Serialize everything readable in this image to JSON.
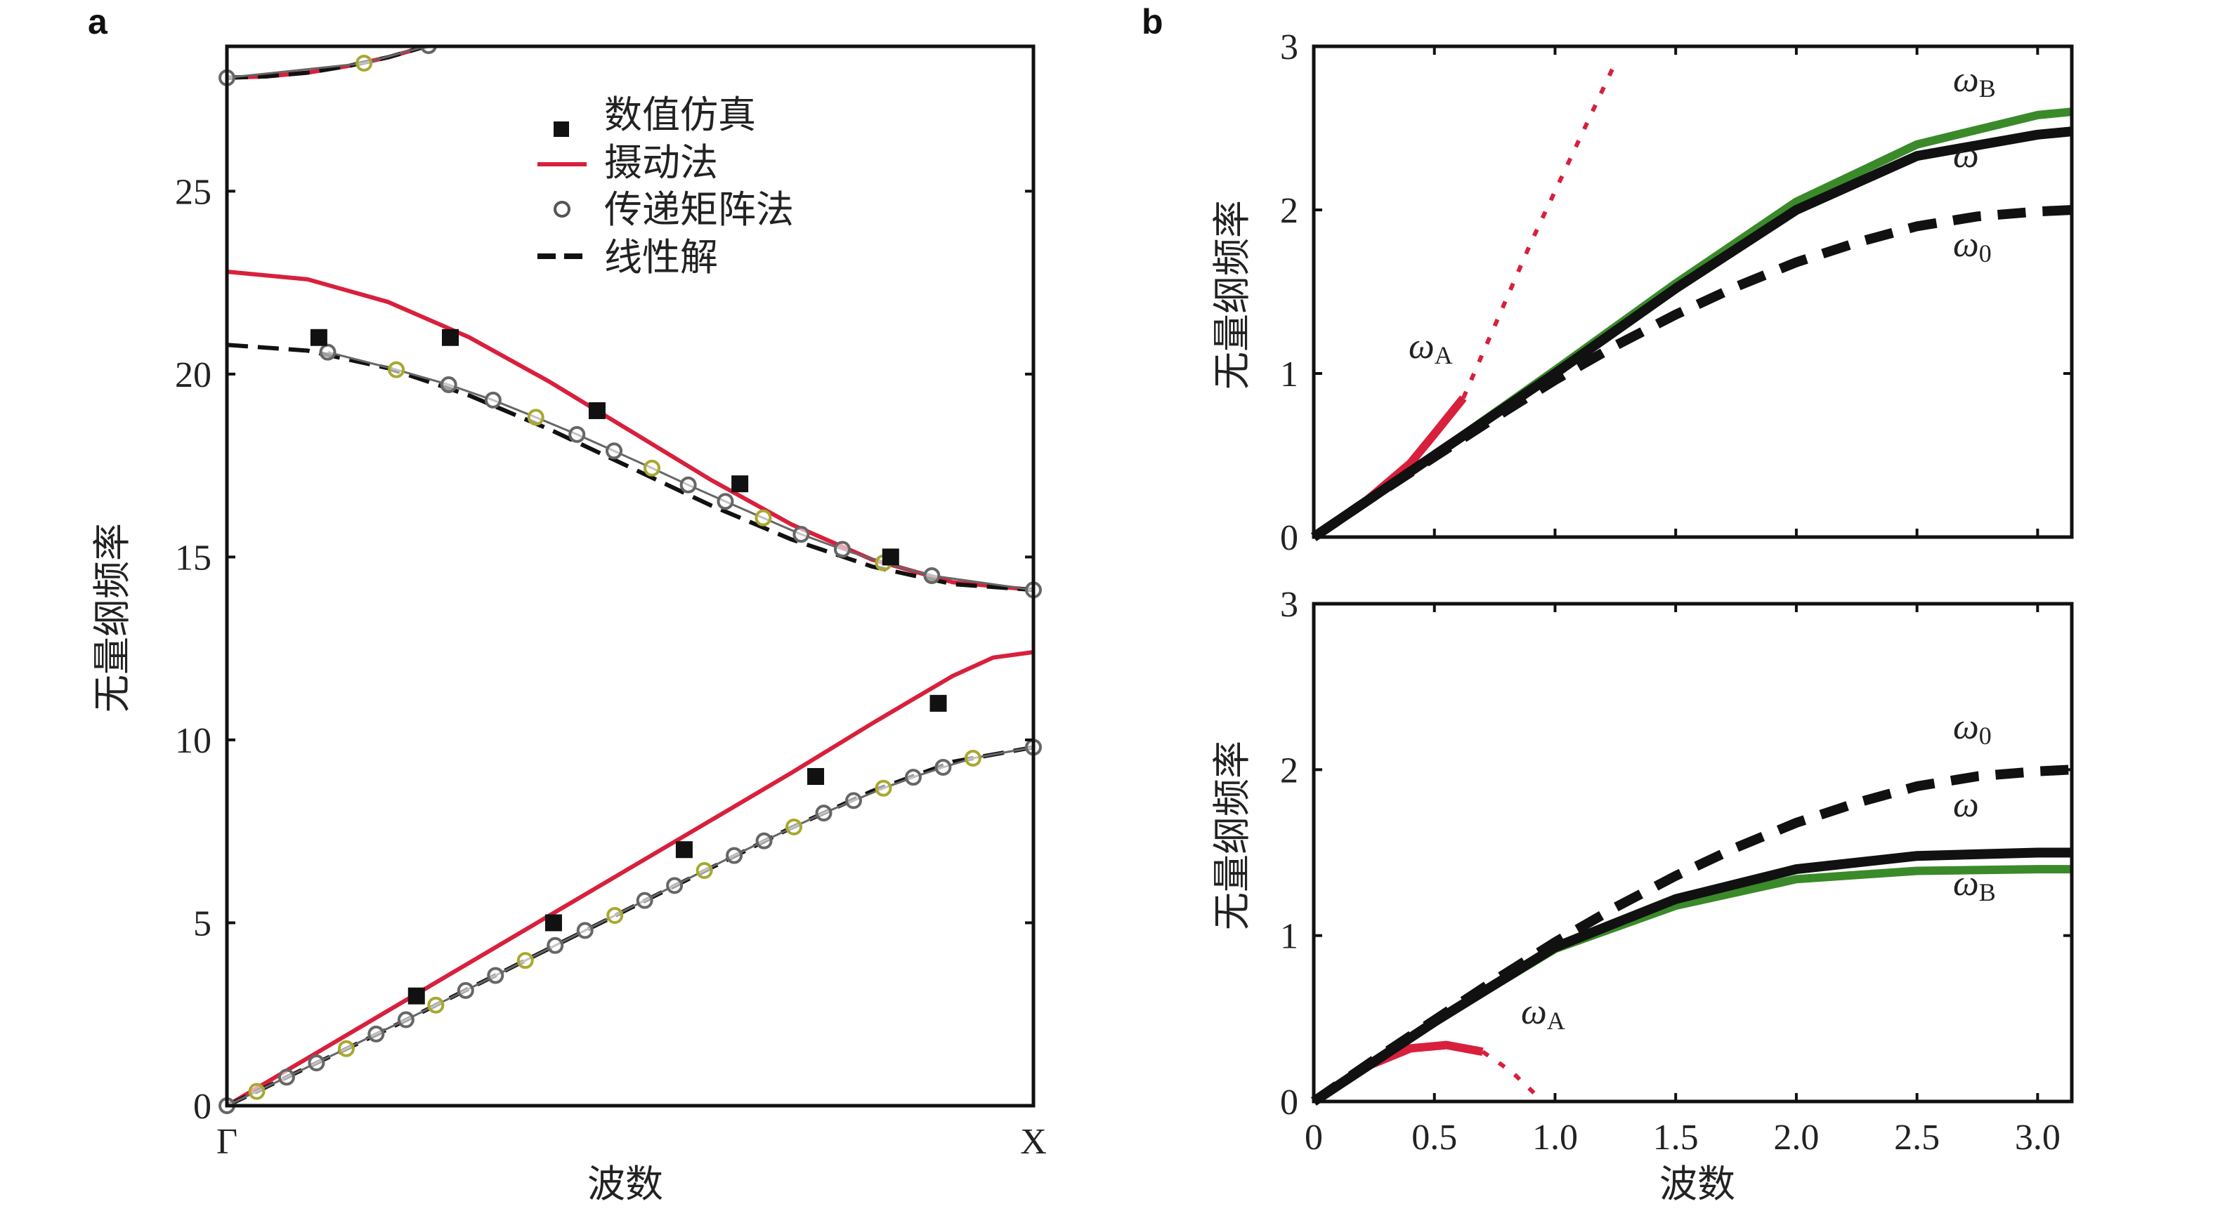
{
  "colors": {
    "perturb": "#d8203c",
    "linear": "#111111",
    "transfer": "#666666",
    "transfer_alt": "#a8a830",
    "green": "#3a8a2a",
    "black": "#111111",
    "frame": "#111111"
  },
  "chart_data": [
    {
      "id": "a",
      "panel_label": "a",
      "type": "line",
      "xlabel": "波数",
      "ylabel": "无量纲频率",
      "xticks": [
        {
          "v": 0,
          "label": "Γ"
        },
        {
          "v": 1,
          "label": "X"
        }
      ],
      "yticks": [
        0,
        5,
        10,
        15,
        20,
        25
      ],
      "xlim": [
        0,
        1
      ],
      "ylim": [
        0,
        28.96
      ],
      "legend": {
        "position": "top-center",
        "entries": [
          "数值仿真",
          "摄动法",
          "传递矩阵法",
          "线性解"
        ]
      },
      "series": [
        {
          "name": "摄动法",
          "style": "solid-red",
          "x": [
            0,
            0.1,
            0.2,
            0.3,
            0.4,
            0.5,
            0.6,
            0.7,
            0.8,
            0.85,
            0.9,
            0.95,
            1
          ],
          "y": [
            0,
            1.3,
            2.6,
            3.9,
            5.2,
            6.5,
            7.8,
            9.1,
            10.45,
            11.1,
            11.75,
            12.25,
            12.4
          ]
        },
        {
          "name": "摄动法",
          "style": "solid-red",
          "fn": "band2_perturb",
          "x": [
            0,
            0.1,
            0.2,
            0.3,
            0.4,
            0.5,
            0.6,
            0.7,
            0.8,
            0.9,
            1
          ],
          "y": [
            22.8,
            22.59,
            21.97,
            21.01,
            19.79,
            18.45,
            17.11,
            15.89,
            14.93,
            14.31,
            14.1
          ]
        },
        {
          "name": "摄动法",
          "style": "solid-red",
          "x": [
            0,
            0.05,
            0.1,
            0.15,
            0.2,
            0.25,
            0.3
          ],
          "y": [
            28.1,
            28.14,
            28.24,
            28.42,
            28.66,
            28.98,
            29.36
          ]
        },
        {
          "name": "线性解",
          "style": "dashed-black",
          "x": [
            0,
            0.1,
            0.2,
            0.3,
            0.4,
            0.5,
            0.6,
            0.7,
            0.8,
            0.9,
            1
          ],
          "y": [
            0,
            1.05,
            2.1,
            3.2,
            4.3,
            5.4,
            6.5,
            7.6,
            8.6,
            9.4,
            9.8
          ]
        },
        {
          "name": "线性解",
          "style": "dashed-black",
          "x": [
            0,
            0.1,
            0.2,
            0.3,
            0.4,
            0.5,
            0.6,
            0.7,
            0.8,
            0.9,
            1
          ],
          "y": [
            20.8,
            20.64,
            20.16,
            19.42,
            18.49,
            17.45,
            16.41,
            15.48,
            14.74,
            14.26,
            14.1
          ]
        },
        {
          "name": "线性解",
          "style": "dashed-black",
          "x": [
            0,
            0.05,
            0.1,
            0.15,
            0.2,
            0.25,
            0.3
          ],
          "y": [
            28.1,
            28.14,
            28.24,
            28.42,
            28.66,
            28.98,
            29.36
          ]
        },
        {
          "name": "传递矩阵法",
          "style": "circles",
          "x": [
            0,
            0.037,
            0.074,
            0.111,
            0.148,
            0.185,
            0.222,
            0.259,
            0.296,
            0.333,
            0.37,
            0.407,
            0.444,
            0.481,
            0.518,
            0.555,
            0.592,
            0.629,
            0.666,
            0.703,
            0.74,
            0.777,
            0.814,
            0.851,
            0.888,
            0.925,
            1
          ],
          "y": [
            0,
            0.39,
            0.78,
            1.17,
            1.56,
            1.96,
            2.35,
            2.75,
            3.15,
            3.56,
            3.97,
            4.38,
            4.79,
            5.2,
            5.61,
            6.02,
            6.43,
            6.84,
            7.24,
            7.62,
            8.0,
            8.34,
            8.68,
            8.98,
            9.25,
            9.5,
            9.8
          ]
        },
        {
          "name": "传递矩阵法",
          "style": "circles",
          "x": [
            0.125,
            0.21,
            0.275,
            0.33,
            0.383,
            0.434,
            0.48,
            0.527,
            0.572,
            0.618,
            0.665,
            0.712,
            0.763,
            0.814,
            0.874,
            1
          ],
          "y": [
            20.6,
            20.12,
            19.71,
            19.29,
            18.82,
            18.35,
            17.9,
            17.43,
            16.97,
            16.52,
            16.07,
            15.62,
            15.21,
            14.84,
            14.49,
            14.1
          ]
        },
        {
          "name": "传递矩阵法",
          "style": "circles",
          "x": [
            0,
            0.17,
            0.25
          ],
          "y": [
            28.1,
            28.5,
            28.98
          ]
        },
        {
          "name": "数值仿真",
          "style": "squares",
          "x": [
            0.235,
            0.405,
            0.567,
            0.73,
            0.882,
            0.114,
            0.277,
            0.459,
            0.636,
            0.823
          ],
          "y": [
            3,
            5,
            7,
            9,
            11,
            21,
            21,
            19,
            17,
            15
          ]
        }
      ]
    },
    {
      "id": "b_top",
      "panel_label": "b",
      "type": "line",
      "xlabel": "",
      "ylabel": "无量纲频率",
      "xticks": [
        0,
        0.5,
        1.0,
        1.5,
        2.0,
        2.5,
        3.0
      ],
      "xticklabels_shown": false,
      "yticks": [
        0,
        1,
        2,
        3
      ],
      "xlim": [
        0,
        3.1416
      ],
      "ylim": [
        0,
        3
      ],
      "series": [
        {
          "name": "ω0",
          "sub": "0",
          "style": "dashed-black",
          "x": [
            0,
            0.25,
            0.5,
            0.75,
            1,
            1.25,
            1.5,
            1.75,
            2,
            2.25,
            2.5,
            2.75,
            3,
            3.1416
          ],
          "y": [
            0,
            0.25,
            0.49,
            0.73,
            0.96,
            1.17,
            1.36,
            1.53,
            1.68,
            1.8,
            1.9,
            1.96,
            1.99,
            2.0
          ]
        },
        {
          "name": "ω",
          "sub": "",
          "style": "solid-black",
          "x": [
            0,
            0.5,
            1,
            1.5,
            2,
            2.5,
            3,
            3.1416
          ],
          "y": [
            0,
            0.5,
            1.0,
            1.52,
            2.0,
            2.33,
            2.46,
            2.48
          ]
        },
        {
          "name": "ωB",
          "sub": "B",
          "style": "solid-green",
          "x": [
            0,
            0.5,
            1,
            1.5,
            2,
            2.5,
            3,
            3.1416
          ],
          "y": [
            0,
            0.5,
            1.02,
            1.55,
            2.05,
            2.4,
            2.58,
            2.6
          ]
        },
        {
          "name": "ωA",
          "sub": "A",
          "style": "solid-red",
          "x": [
            0,
            0.2,
            0.4,
            0.5,
            0.62
          ],
          "y": [
            0,
            0.2,
            0.45,
            0.63,
            0.85
          ]
        },
        {
          "name": "ωA",
          "sub": "A",
          "style": "dotted-red",
          "x": [
            0.62,
            0.9,
            1.25
          ],
          "y": [
            0.85,
            1.8,
            2.9
          ]
        }
      ]
    },
    {
      "id": "b_bottom",
      "type": "line",
      "xlabel": "波数",
      "ylabel": "无量纲频率",
      "xticks": [
        0,
        0.5,
        1.0,
        1.5,
        2.0,
        2.5,
        3.0
      ],
      "xticklabels": [
        "0",
        "0.5",
        "1.0",
        "1.5",
        "2.0",
        "2.5",
        "3.0"
      ],
      "yticks": [
        0,
        1,
        2,
        3
      ],
      "xlim": [
        0,
        3.1416
      ],
      "ylim": [
        0,
        3
      ],
      "series": [
        {
          "name": "ω0",
          "sub": "0",
          "style": "dashed-black",
          "x": [
            0,
            0.25,
            0.5,
            0.75,
            1,
            1.25,
            1.5,
            1.75,
            2,
            2.25,
            2.5,
            2.75,
            3,
            3.1416
          ],
          "y": [
            0,
            0.25,
            0.49,
            0.73,
            0.96,
            1.17,
            1.36,
            1.53,
            1.68,
            1.8,
            1.9,
            1.96,
            1.99,
            2.0
          ]
        },
        {
          "name": "ω",
          "sub": "",
          "style": "solid-black",
          "x": [
            0,
            0.5,
            1,
            1.5,
            2,
            2.5,
            3,
            3.1416
          ],
          "y": [
            0,
            0.48,
            0.93,
            1.22,
            1.4,
            1.48,
            1.5,
            1.5
          ]
        },
        {
          "name": "ωB",
          "sub": "B",
          "style": "solid-green",
          "x": [
            0,
            0.5,
            1,
            1.5,
            2,
            2.5,
            3,
            3.1416
          ],
          "y": [
            0,
            0.48,
            0.92,
            1.18,
            1.34,
            1.39,
            1.4,
            1.4
          ]
        },
        {
          "name": "ωA",
          "sub": "A",
          "style": "solid-red",
          "x": [
            0,
            0.2,
            0.4,
            0.55,
            0.7
          ],
          "y": [
            0,
            0.2,
            0.32,
            0.34,
            0.3
          ]
        },
        {
          "name": "ωA",
          "sub": "A",
          "style": "dotted-red",
          "x": [
            0.7,
            0.82,
            0.95
          ],
          "y": [
            0.3,
            0.18,
            0
          ]
        }
      ]
    }
  ],
  "omega_labels": {
    "base": "ω",
    "A": "A",
    "B": "B",
    "zero": "0"
  }
}
